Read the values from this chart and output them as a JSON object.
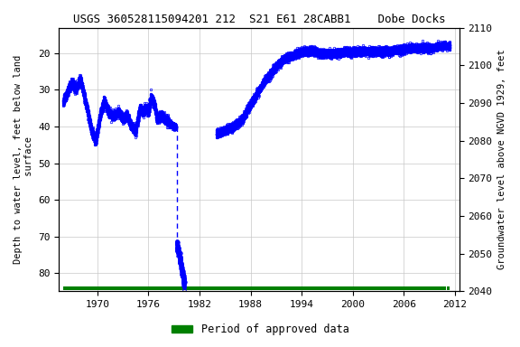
{
  "title": "USGS 360528115094201 212  S21 E61 28CABB1    Dobe Docks",
  "ylabel_left": "Depth to water level, feet below land\n surface",
  "ylabel_right": "Groundwater level above NGVD 1929, feet",
  "xlabel_ticks": [
    1970,
    1976,
    1982,
    1988,
    1994,
    2000,
    2006,
    2012
  ],
  "ylim_left": [
    85,
    13
  ],
  "ylim_right": [
    2040,
    2110
  ],
  "yticks_left": [
    20,
    30,
    40,
    50,
    60,
    70,
    80
  ],
  "yticks_right": [
    2040,
    2050,
    2060,
    2070,
    2080,
    2090,
    2100,
    2110
  ],
  "data_color": "#0000FF",
  "approved_color": "#008000",
  "background_color": "#ffffff",
  "grid_color": "#c8c8c8",
  "legend_label": "Period of approved data",
  "xlim": [
    1965.5,
    2012.5
  ],
  "approved_bar": {
    "start": 1966.0,
    "end": 2010.9
  },
  "approved_bar2": {
    "start": 2011.05,
    "end": 2011.4
  }
}
